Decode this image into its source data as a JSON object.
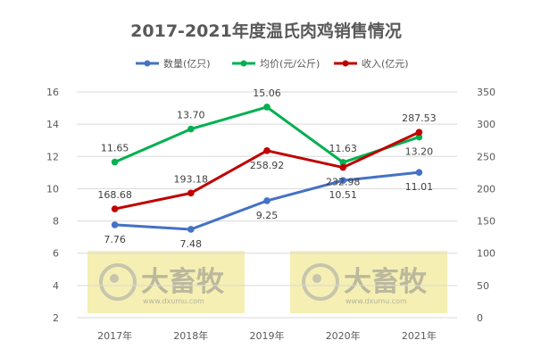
{
  "chart_data": {
    "type": "line",
    "title": "2017-2021年度温氏肉鸡销售情况",
    "categories": [
      "2017年",
      "2018年",
      "2019年",
      "2020年",
      "2021年"
    ],
    "y_left": {
      "ylim": [
        2,
        16
      ],
      "ticks": [
        2,
        4,
        6,
        8,
        10,
        12,
        14,
        16
      ]
    },
    "y_right": {
      "ylim": [
        0,
        350
      ],
      "ticks": [
        0,
        50,
        100,
        150,
        200,
        250,
        300,
        350
      ]
    },
    "grid": true,
    "legend_position": "top",
    "series": [
      {
        "name": "数量(亿只)",
        "axis": "left",
        "color": "#4472c4",
        "values": [
          7.76,
          7.48,
          9.25,
          10.51,
          11.01
        ],
        "labels": [
          "7.76",
          "7.48",
          "9.25",
          "10.51",
          "11.01"
        ]
      },
      {
        "name": "均价(元/公斤)",
        "axis": "left",
        "color": "#00b050",
        "values": [
          11.65,
          13.7,
          15.06,
          11.63,
          13.2
        ],
        "labels": [
          "11.65",
          "13.70",
          "15.06",
          "11.63",
          "13.20"
        ]
      },
      {
        "name": "收入(亿元)",
        "axis": "right",
        "color": "#c00000",
        "values": [
          168.68,
          193.18,
          258.92,
          232.98,
          287.53
        ],
        "labels": [
          "168.68",
          "193.18",
          "258.92",
          "232.98",
          "287.53"
        ]
      }
    ]
  },
  "watermark": {
    "brand": "大畜牧",
    "site": "www.dxumu.com",
    "color": "#f5efb3"
  }
}
